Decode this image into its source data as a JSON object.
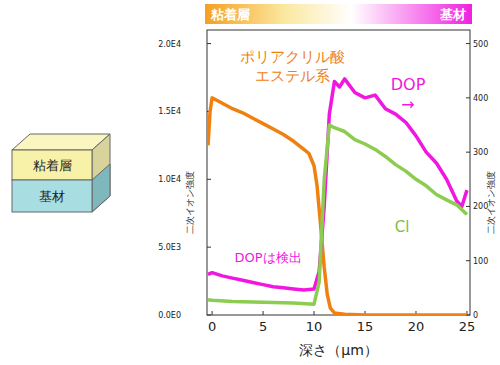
{
  "chart_data": {
    "type": "line",
    "x_label": "深さ（μm）",
    "y_label": "二次イオン強度",
    "y2_label": "二次イオン強度",
    "band": {
      "left": "粘着層",
      "right": "基材"
    },
    "diagram_labels": [
      "粘着層",
      "基材"
    ],
    "annotations": [
      {
        "text": "ポリアクリル酸\nエステル系",
        "color": "#f08010"
      },
      {
        "text": "DOP\n→",
        "color": "#f018e0"
      },
      {
        "text": "Cl",
        "color": "#7cc040"
      },
      {
        "text": "DOPは検出",
        "color": "#f018e0"
      }
    ],
    "xlim": [
      -0.5,
      25.3
    ],
    "xticks": [
      0,
      5,
      10,
      15,
      20,
      25
    ],
    "ylim": [
      0,
      21000
    ],
    "yticks": [
      {
        "value": 0,
        "label": "0.0E0"
      },
      {
        "value": 5000,
        "label": "5.0E3"
      },
      {
        "value": 10000,
        "label": "1.0E4"
      },
      {
        "value": 15000,
        "label": "1.5E4"
      },
      {
        "value": 20000,
        "label": "2.0E4"
      }
    ],
    "y2lim": [
      0,
      525
    ],
    "y2ticks": [
      0,
      100,
      200,
      300,
      400,
      500
    ],
    "grid": false,
    "series": [
      {
        "name": "ポリアクリル酸エステル系",
        "color": "#f08010",
        "axis": "y",
        "x": [
          -0.4,
          -0.2,
          0,
          0.5,
          1,
          2,
          3,
          4,
          5,
          6,
          7,
          8,
          9,
          9.5,
          10,
          10.3,
          10.6,
          11,
          11.3,
          11.6,
          12,
          13,
          15,
          20,
          25
        ],
        "values": [
          12500,
          15000,
          16000,
          15800,
          15600,
          15200,
          14900,
          14500,
          14100,
          13700,
          13300,
          12800,
          12200,
          11900,
          11000,
          9500,
          7000,
          3500,
          1500,
          500,
          150,
          50,
          0,
          0,
          0
        ]
      },
      {
        "name": "DOP",
        "color": "#f018e0",
        "axis": "y2",
        "x": [
          -0.4,
          0,
          1,
          2,
          3,
          4,
          5,
          6,
          7,
          8,
          9,
          10,
          10.5,
          11,
          11.5,
          12,
          12.5,
          13,
          14,
          15,
          16,
          17,
          18,
          19,
          20,
          21,
          22,
          23,
          24,
          24.5,
          25
        ],
        "values": [
          75,
          78,
          72,
          68,
          64,
          60,
          56,
          52,
          50,
          48,
          46,
          48,
          80,
          200,
          370,
          430,
          420,
          435,
          410,
          400,
          405,
          380,
          370,
          355,
          330,
          300,
          280,
          250,
          210,
          200,
          230
        ]
      },
      {
        "name": "Cl",
        "color": "#8ccc50",
        "axis": "y2",
        "x": [
          -0.4,
          0,
          2,
          4,
          6,
          8,
          10,
          10.5,
          11,
          11.5,
          12,
          13,
          14,
          15,
          16,
          17,
          18,
          19,
          20,
          21,
          22,
          23,
          24,
          25
        ],
        "values": [
          28,
          27,
          25,
          24,
          23,
          22,
          20,
          60,
          250,
          350,
          345,
          338,
          323,
          315,
          305,
          292,
          277,
          265,
          250,
          238,
          222,
          212,
          203,
          185
        ]
      }
    ]
  }
}
